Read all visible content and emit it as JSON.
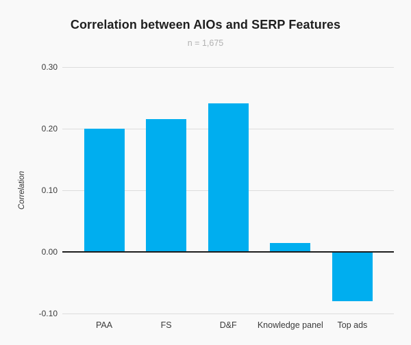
{
  "chart_data": {
    "type": "bar",
    "title": "Correlation between AIOs and SERP Features",
    "subtitle": "n = 1,675",
    "xlabel": "",
    "ylabel": "Correlation",
    "categories": [
      "PAA",
      "FS",
      "D&F",
      "Knowledge panel",
      "Top ads"
    ],
    "values": [
      0.2,
      0.216,
      0.241,
      0.014,
      -0.08
    ],
    "ylim": [
      -0.1,
      0.3
    ],
    "yticks": [
      0.3,
      0.2,
      0.1,
      0.0,
      -0.1
    ],
    "ytick_labels": [
      "0.30",
      "0.20",
      "0.10",
      "0.00",
      "-0.10"
    ],
    "grid": true,
    "legend_position": "none",
    "bar_color": "#00AEEF",
    "background_color": "#f9f9f9",
    "zero_line_color": "#1c1c1c",
    "gridline_color": "#dcdcdc"
  }
}
